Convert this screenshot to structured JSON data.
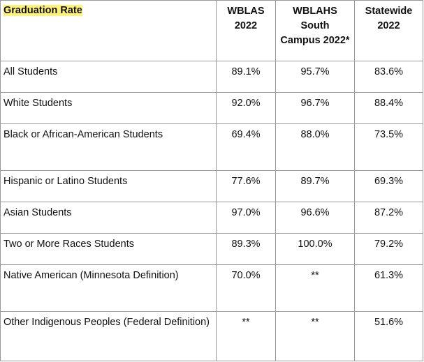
{
  "table": {
    "headers": [
      {
        "lines": [
          "Graduation Rate"
        ]
      },
      {
        "lines": [
          "WBLAS",
          "2022"
        ]
      },
      {
        "lines": [
          "WBLAHS",
          "South",
          "Campus 2022*"
        ]
      },
      {
        "lines": [
          "Statewide",
          "2022"
        ]
      }
    ],
    "rows": [
      {
        "label": "All Students",
        "wblas": "89.1%",
        "south": "95.7%",
        "statewide": "83.6%"
      },
      {
        "label": "White Students",
        "wblas": "92.0%",
        "south": "96.7%",
        "statewide": "88.4%"
      },
      {
        "label": "Black or African-American Students",
        "wblas": "69.4%",
        "south": "88.0%",
        "statewide": "73.5%"
      },
      {
        "label": "Hispanic or Latino Students",
        "wblas": "77.6%",
        "south": "89.7%",
        "statewide": "69.3%"
      },
      {
        "label": "Asian Students",
        "wblas": "97.0%",
        "south": "96.6%",
        "statewide": "87.2%"
      },
      {
        "label": "Two or More Races Students",
        "wblas": "89.3%",
        "south": "100.0%",
        "statewide": "79.2%"
      },
      {
        "label": "Native American (Minnesota Definition)",
        "wblas": "70.0%",
        "south": "**",
        "statewide": "61.3%"
      },
      {
        "label": "Other Indigenous Peoples (Federal Definition)",
        "wblas": "**",
        "south": "**",
        "statewide": "51.6%"
      }
    ]
  },
  "colors": {
    "header_highlight": "#fff27a",
    "border": "#9a9a9a"
  }
}
